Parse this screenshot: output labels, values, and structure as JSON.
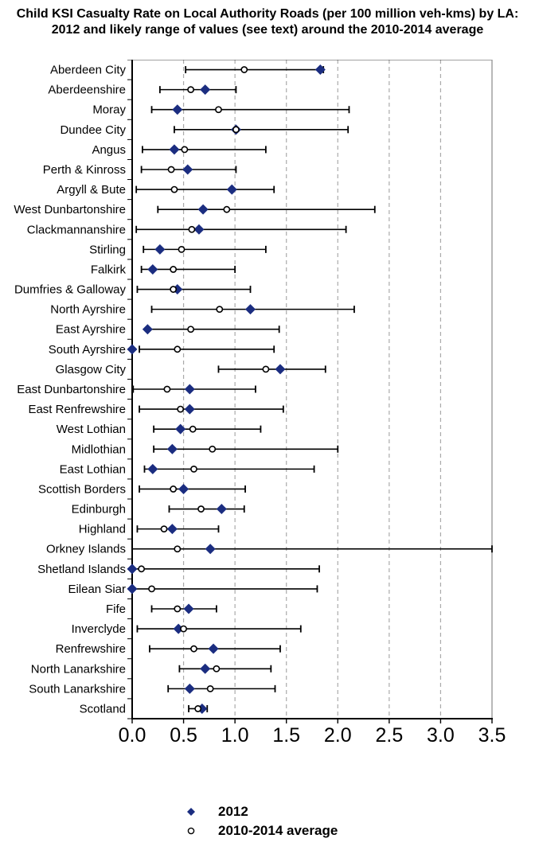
{
  "colors": {
    "diamond": "#1b2d80",
    "line": "#000000",
    "grid": "#aaaaaa",
    "circle_fill": "#ffffff",
    "border_light": "#999999"
  },
  "legend": {
    "items": [
      {
        "icon": "diamond-icon",
        "label": "2012"
      },
      {
        "icon": "circle-icon",
        "label": "2010-2014 average"
      }
    ]
  },
  "chart_data": {
    "type": "scatter",
    "orientation": "horizontal",
    "title": "Child KSI Casualty Rate on Local Authority Roads (per 100 million veh-kms)  by LA: 2012 and likely range of values (see text) around the 2010-2014 average",
    "xlabel": "",
    "ylabel": "",
    "xlim": [
      0.0,
      3.5
    ],
    "xticks": [
      0.0,
      0.5,
      1.0,
      1.5,
      2.0,
      2.5,
      3.0,
      3.5
    ],
    "xticklabels": [
      "0.0",
      "0.5",
      "1.0",
      "1.5",
      "2.0",
      "2.5",
      "3.0",
      "3.5"
    ],
    "grid": true,
    "legend_position": "bottom",
    "series": [
      {
        "name": "2012",
        "marker": "filled-diamond"
      },
      {
        "name": "2010-2014 average",
        "marker": "open-circle"
      }
    ],
    "rows": [
      {
        "la": "Aberdeen City",
        "y2012": 1.83,
        "avg": 1.09,
        "range_low": 0.52,
        "range_high": 1.86
      },
      {
        "la": "Aberdeenshire",
        "y2012": 0.71,
        "avg": 0.57,
        "range_low": 0.27,
        "range_high": 1.01
      },
      {
        "la": "Moray",
        "y2012": 0.44,
        "avg": 0.84,
        "range_low": 0.19,
        "range_high": 2.11
      },
      {
        "la": "Dundee City",
        "y2012": 1.01,
        "avg": 1.01,
        "range_low": 0.41,
        "range_high": 2.1
      },
      {
        "la": "Angus",
        "y2012": 0.41,
        "avg": 0.51,
        "range_low": 0.1,
        "range_high": 1.3
      },
      {
        "la": "Perth & Kinross",
        "y2012": 0.54,
        "avg": 0.38,
        "range_low": 0.09,
        "range_high": 1.01
      },
      {
        "la": "Argyll & Bute",
        "y2012": 0.97,
        "avg": 0.41,
        "range_low": 0.04,
        "range_high": 1.38
      },
      {
        "la": "West Dunbartonshire",
        "y2012": 0.69,
        "avg": 0.92,
        "range_low": 0.25,
        "range_high": 2.36
      },
      {
        "la": "Clackmannanshire",
        "y2012": 0.65,
        "avg": 0.58,
        "range_low": 0.04,
        "range_high": 2.08
      },
      {
        "la": "Stirling",
        "y2012": 0.27,
        "avg": 0.48,
        "range_low": 0.11,
        "range_high": 1.3
      },
      {
        "la": "Falkirk",
        "y2012": 0.2,
        "avg": 0.4,
        "range_low": 0.09,
        "range_high": 1.0
      },
      {
        "la": "Dumfries & Galloway",
        "y2012": 0.44,
        "avg": 0.4,
        "range_low": 0.05,
        "range_high": 1.15
      },
      {
        "la": "North Ayrshire",
        "y2012": 1.15,
        "avg": 0.85,
        "range_low": 0.19,
        "range_high": 2.16
      },
      {
        "la": "East Ayrshire",
        "y2012": 0.15,
        "avg": 0.57,
        "range_low": 0.15,
        "range_high": 1.43
      },
      {
        "la": "South Ayrshire",
        "y2012": 0.0,
        "avg": 0.44,
        "range_low": 0.07,
        "range_high": 1.38
      },
      {
        "la": "Glasgow City",
        "y2012": 1.44,
        "avg": 1.3,
        "range_low": 0.84,
        "range_high": 1.88
      },
      {
        "la": "East Dunbartonshire",
        "y2012": 0.56,
        "avg": 0.34,
        "range_low": 0.01,
        "range_high": 1.2
      },
      {
        "la": "East Renfrewshire",
        "y2012": 0.56,
        "avg": 0.47,
        "range_low": 0.07,
        "range_high": 1.47
      },
      {
        "la": "West Lothian",
        "y2012": 0.47,
        "avg": 0.59,
        "range_low": 0.21,
        "range_high": 1.25
      },
      {
        "la": "Midlothian",
        "y2012": 0.39,
        "avg": 0.78,
        "range_low": 0.21,
        "range_high": 2.0
      },
      {
        "la": "East Lothian",
        "y2012": 0.2,
        "avg": 0.6,
        "range_low": 0.12,
        "range_high": 1.77
      },
      {
        "la": "Scottish Borders",
        "y2012": 0.5,
        "avg": 0.4,
        "range_low": 0.07,
        "range_high": 1.1
      },
      {
        "la": "Edinburgh",
        "y2012": 0.87,
        "avg": 0.67,
        "range_low": 0.36,
        "range_high": 1.09
      },
      {
        "la": "Highland",
        "y2012": 0.39,
        "avg": 0.31,
        "range_low": 0.05,
        "range_high": 0.84
      },
      {
        "la": "Orkney Islands",
        "y2012": 0.76,
        "avg": 0.44,
        "range_low": 0.0,
        "range_high": 3.5
      },
      {
        "la": "Shetland Islands",
        "y2012": 0.0,
        "avg": 0.09,
        "range_low": 0.0,
        "range_high": 1.82
      },
      {
        "la": "Eilean Siar",
        "y2012": 0.0,
        "avg": 0.19,
        "range_low": 0.0,
        "range_high": 1.8
      },
      {
        "la": "Fife",
        "y2012": 0.55,
        "avg": 0.44,
        "range_low": 0.19,
        "range_high": 0.82
      },
      {
        "la": "Inverclyde",
        "y2012": 0.45,
        "avg": 0.5,
        "range_low": 0.05,
        "range_high": 1.64
      },
      {
        "la": "Renfrewshire",
        "y2012": 0.79,
        "avg": 0.6,
        "range_low": 0.17,
        "range_high": 1.44
      },
      {
        "la": "North Lanarkshire",
        "y2012": 0.71,
        "avg": 0.82,
        "range_low": 0.46,
        "range_high": 1.35
      },
      {
        "la": "South Lanarkshire",
        "y2012": 0.56,
        "avg": 0.76,
        "range_low": 0.35,
        "range_high": 1.39
      },
      {
        "la": "Scotland",
        "y2012": 0.68,
        "avg": 0.64,
        "range_low": 0.55,
        "range_high": 0.73
      }
    ]
  }
}
